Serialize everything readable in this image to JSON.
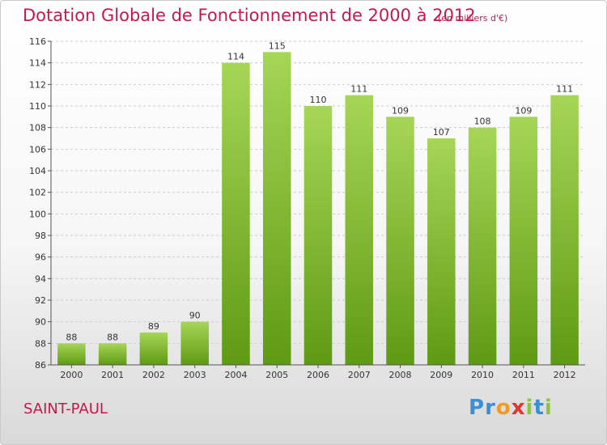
{
  "chart_data": {
    "type": "bar",
    "title": "Dotation Globale de Fonctionnement de 2000 à 2012",
    "unit": "(en milliers d'€)",
    "categories": [
      "2000",
      "2001",
      "2002",
      "2003",
      "2004",
      "2005",
      "2006",
      "2007",
      "2008",
      "2009",
      "2010",
      "2011",
      "2012"
    ],
    "values": [
      88,
      88,
      89,
      90,
      114,
      115,
      110,
      111,
      109,
      107,
      108,
      109,
      111
    ],
    "ylim": [
      86,
      116
    ],
    "yticks": [
      86,
      88,
      90,
      92,
      94,
      96,
      98,
      100,
      102,
      104,
      106,
      108,
      110,
      112,
      114,
      116
    ],
    "grid": "horizontal-dashed",
    "bar_color_light": "#a6d656",
    "bar_color_dark": "#5f9a14"
  },
  "footer": {
    "place": "SAINT-PAUL",
    "logo_letters": [
      {
        "ch": "P",
        "color": "#3a8fd6"
      },
      {
        "ch": "r",
        "color": "#3a8fd6"
      },
      {
        "ch": "o",
        "color": "#f29b1f"
      },
      {
        "ch": "x",
        "color": "#e3342f"
      },
      {
        "ch": "i",
        "color": "#8cc63f"
      },
      {
        "ch": "t",
        "color": "#3a8fd6"
      },
      {
        "ch": "i",
        "color": "#8cc63f"
      }
    ]
  },
  "colors": {
    "title": "#c21a4b",
    "axis": "#555555",
    "grid": "#cccccc"
  }
}
